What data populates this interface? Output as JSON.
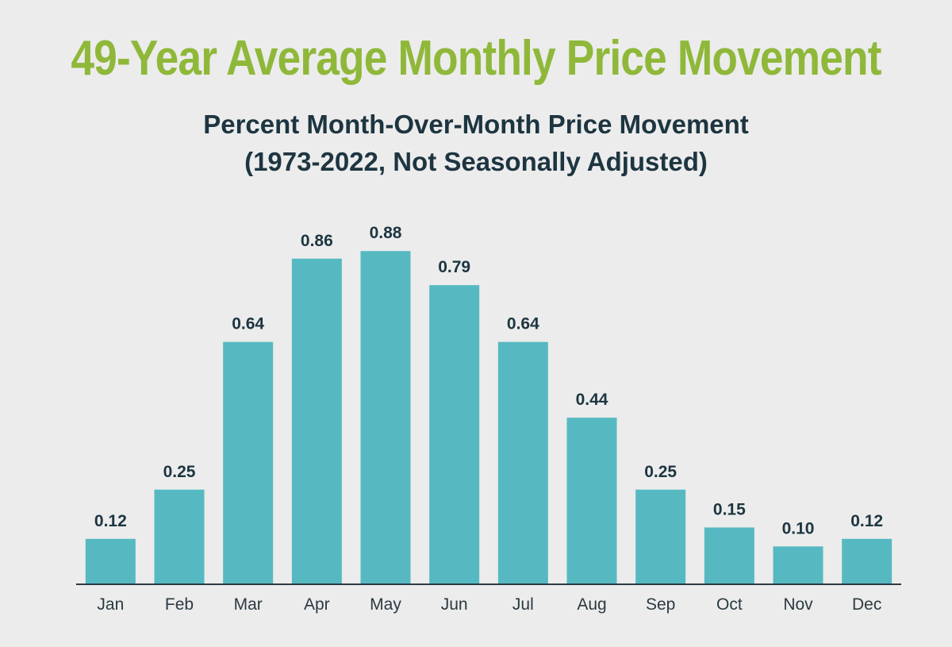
{
  "chart_data": {
    "type": "bar",
    "title": "49-Year Average Monthly Price Movement",
    "subtitle_lines": [
      "Percent Month-Over-Month Price Movement",
      "(1973-2022, Not Seasonally Adjusted)"
    ],
    "categories": [
      "Jan",
      "Feb",
      "Mar",
      "Apr",
      "May",
      "Jun",
      "Jul",
      "Aug",
      "Sep",
      "Oct",
      "Nov",
      "Dec"
    ],
    "values": [
      0.12,
      0.25,
      0.64,
      0.86,
      0.88,
      0.79,
      0.64,
      0.44,
      0.25,
      0.15,
      0.1,
      0.12
    ],
    "value_labels": [
      "0.12",
      "0.25",
      "0.64",
      "0.86",
      "0.88",
      "0.79",
      "0.64",
      "0.44",
      "0.25",
      "0.15",
      "0.10",
      "0.12"
    ],
    "xlabel": "",
    "ylabel": "",
    "ylim": [
      0,
      1
    ],
    "grid": false,
    "colors": {
      "bar": "#56b9c2",
      "title": "#8fb83a",
      "text": "#1d3540"
    }
  }
}
